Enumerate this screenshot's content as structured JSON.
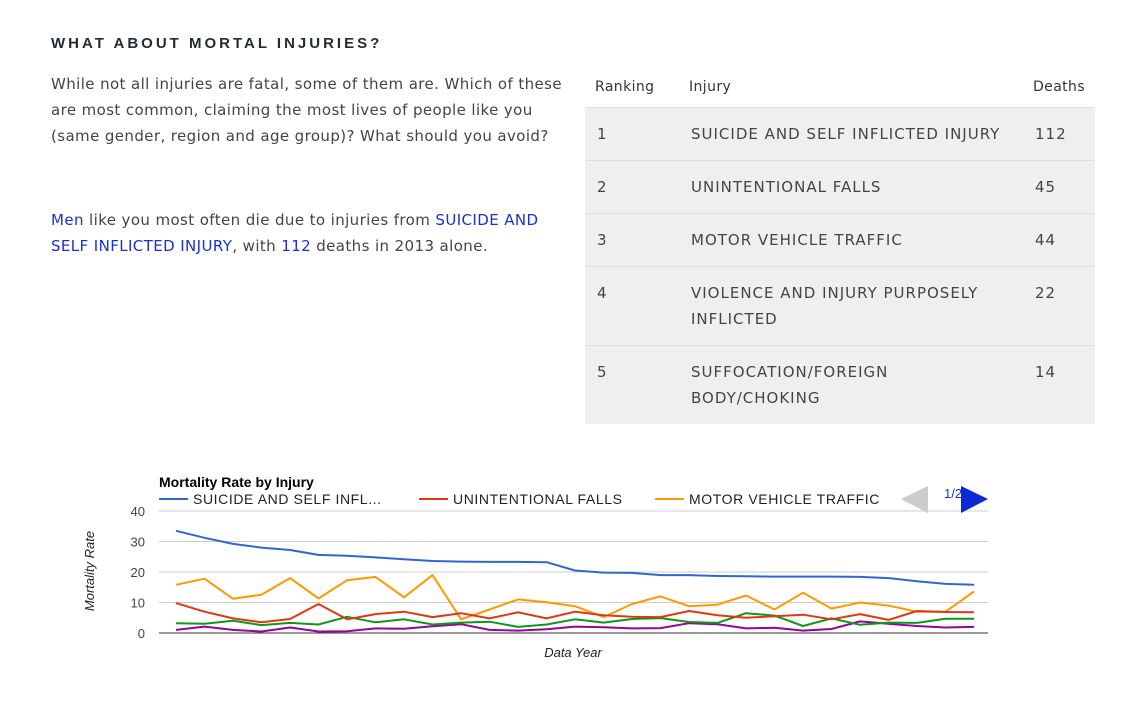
{
  "section": {
    "heading": "WHAT ABOUT MORTAL INJURIES?",
    "intro": "While not all injuries are fatal, some of them are. Which of these are most common, claiming the most lives of people like you (same gender, region and age group)? What should you avoid?",
    "summary": {
      "gender": "Men",
      "text1": " like you most often die due to injuries from ",
      "top_injury": "SUICIDE AND SELF INFLICTED INJURY",
      "text2": ", with ",
      "deaths": "112",
      "text3": " deaths in 2013 alone."
    }
  },
  "table": {
    "headers": {
      "rank": "Ranking",
      "injury": "Injury",
      "deaths": "Deaths"
    },
    "rows": [
      {
        "rank": "1",
        "injury": "SUICIDE AND SELF INFLICTED INJURY",
        "deaths": "112"
      },
      {
        "rank": "2",
        "injury": "UNINTENTIONAL FALLS",
        "deaths": "45"
      },
      {
        "rank": "3",
        "injury": "MOTOR VEHICLE TRAFFIC",
        "deaths": "44"
      },
      {
        "rank": "4",
        "injury": "VIOLENCE AND INJURY PURPOSELY INFLICTED",
        "deaths": "22"
      },
      {
        "rank": "5",
        "injury": "SUFFOCATION/FOREIGN BODY/CHOKING",
        "deaths": "14"
      }
    ]
  },
  "chart_data": {
    "type": "line",
    "title": "Mortality Rate by Injury",
    "xlabel": "Data Year",
    "ylabel": "Mortality Rate",
    "ylim": [
      0,
      40
    ],
    "yticks": [
      "0",
      "10",
      "20",
      "30",
      "40"
    ],
    "grid": true,
    "legend_position": "top",
    "legend_page": "1/2",
    "legend_names": [
      "SUICIDE AND SELF INFL...",
      "UNINTENTIONAL FALLS",
      "MOTOR VEHICLE TRAFFIC"
    ],
    "series": [
      {
        "name": "SUICIDE AND SELF INFLICTED INJURY",
        "color": "#3366cc",
        "values": [
          33.5,
          31.2,
          29.2,
          28.0,
          27.2,
          25.6,
          25.3,
          24.8,
          24.2,
          23.6,
          23.4,
          23.3,
          23.3,
          23.2,
          20.5,
          19.8,
          19.7,
          19.0,
          19.0,
          18.7,
          18.6,
          18.5,
          18.5,
          18.5,
          18.4,
          18.0,
          17.0,
          16.1,
          15.8
        ]
      },
      {
        "name": "UNINTENTIONAL FALLS",
        "color": "#dc3912",
        "values": [
          9.8,
          7.0,
          4.8,
          3.5,
          4.6,
          9.5,
          4.5,
          6.2,
          7.0,
          5.2,
          6.5,
          4.8,
          6.8,
          4.8,
          7.0,
          5.8,
          5.3,
          5.2,
          7.2,
          5.8,
          5.0,
          5.5,
          6.0,
          4.5,
          6.2,
          4.3,
          7.2,
          6.9,
          6.8
        ]
      },
      {
        "name": "MOTOR VEHICLE TRAFFIC",
        "color": "#ff9900",
        "values": [
          15.8,
          17.8,
          11.2,
          12.6,
          18.0,
          11.3,
          17.3,
          18.4,
          11.7,
          19.0,
          4.5,
          7.7,
          11.0,
          10.1,
          8.8,
          5.2,
          9.5,
          12.0,
          8.8,
          9.3,
          12.3,
          7.7,
          13.2,
          8.0,
          10.0,
          9.0,
          7.0,
          7.0,
          13.6
        ]
      },
      {
        "color": "#109618",
        "values": [
          3.2,
          3.0,
          4.0,
          2.6,
          3.3,
          2.8,
          5.3,
          3.5,
          4.5,
          2.8,
          3.4,
          3.7,
          2.0,
          2.8,
          4.5,
          3.4,
          4.6,
          4.9,
          3.6,
          3.3,
          6.5,
          5.7,
          2.3,
          4.8,
          2.7,
          3.4,
          3.3,
          4.7,
          4.7
        ]
      },
      {
        "color": "#990099",
        "values": [
          1.0,
          2.1,
          1.0,
          0.5,
          1.8,
          0.5,
          0.6,
          1.5,
          1.4,
          2.2,
          2.9,
          1.0,
          0.8,
          1.2,
          2.1,
          1.9,
          1.5,
          1.6,
          3.2,
          2.9,
          1.5,
          1.7,
          0.8,
          1.3,
          3.8,
          3.0,
          2.3,
          1.8,
          2.0
        ]
      }
    ]
  },
  "colors": {
    "highlight": "#1a2fd6",
    "table_row_bg": "#efefef",
    "heading": "#222c36",
    "grid": "#cccccc",
    "nav_disabled": "#cccccc",
    "nav_active": "#0b2ad6"
  },
  "icons": {
    "legend_prev": "triangle-left-icon",
    "legend_next": "triangle-right-icon"
  }
}
